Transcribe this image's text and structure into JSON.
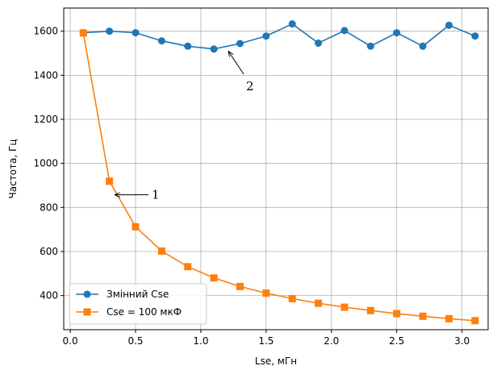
{
  "chart_data": {
    "type": "line",
    "xlabel": "Lse, мГн",
    "ylabel": "Частота, Гц",
    "xlim": [
      -0.05,
      3.2
    ],
    "ylim": [
      245,
      1705
    ],
    "xticks": [
      "0.0",
      "0.5",
      "1.0",
      "1.5",
      "2.0",
      "2.5",
      "3.0"
    ],
    "yticks": [
      "400",
      "600",
      "800",
      "1000",
      "1200",
      "1400",
      "1600"
    ],
    "grid": true,
    "legend_position": "lower-left",
    "series": [
      {
        "name": "Змінний Cse",
        "color": "#1f77b4",
        "marker": "circle",
        "x": [
          0.1,
          0.3,
          0.5,
          0.7,
          0.9,
          1.1,
          1.3,
          1.5,
          1.7,
          1.9,
          2.1,
          2.3,
          2.5,
          2.7,
          2.9,
          3.1
        ],
        "y": [
          1593,
          1600,
          1593,
          1556,
          1532,
          1519,
          1544,
          1578,
          1633,
          1546,
          1603,
          1532,
          1593,
          1532,
          1627,
          1578
        ]
      },
      {
        "name": "Cse = 100 мкФ",
        "color": "#ff7f0e",
        "marker": "square",
        "x": [
          0.1,
          0.3,
          0.5,
          0.7,
          0.9,
          1.1,
          1.3,
          1.5,
          1.7,
          1.9,
          2.1,
          2.3,
          2.5,
          2.7,
          2.9,
          3.1
        ],
        "y": [
          1592,
          919,
          712,
          602,
          531,
          480,
          441,
          411,
          386,
          365,
          347,
          332,
          318,
          306,
          295,
          286
        ]
      }
    ],
    "annotations": [
      {
        "text": "1",
        "target_x": 0.33,
        "target_y": 850
      },
      {
        "text": "2",
        "target_x": 1.2,
        "target_y": 1530
      }
    ]
  }
}
